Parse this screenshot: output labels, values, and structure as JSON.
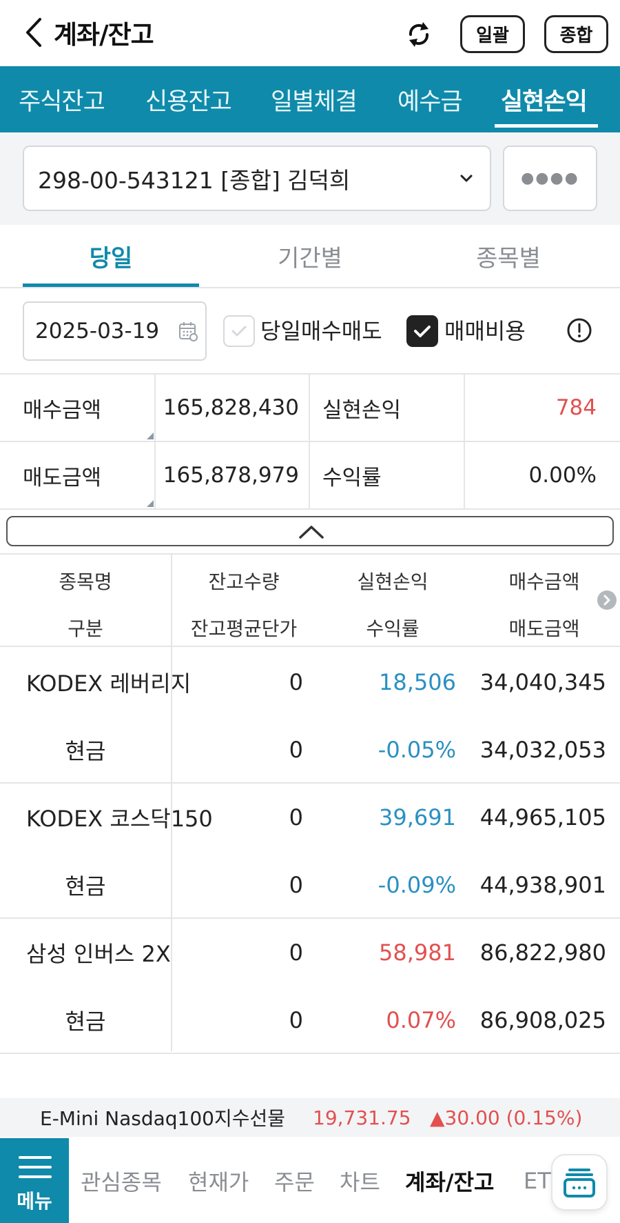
{
  "header": {
    "title": "계좌/잔고",
    "btn_bulk": "일괄",
    "btn_total": "종합"
  },
  "tabs": [
    {
      "label": "주식잔고",
      "active": false
    },
    {
      "label": "신용잔고",
      "active": false
    },
    {
      "label": "일별체결",
      "active": false
    },
    {
      "label": "예수금",
      "active": false
    },
    {
      "label": "실현손익",
      "active": true
    }
  ],
  "account": {
    "value": "298-00-543121 [종합] 김덕희",
    "password_mask": "●●●●"
  },
  "subtabs": [
    {
      "label": "당일",
      "active": true
    },
    {
      "label": "기간별",
      "active": false
    },
    {
      "label": "종목별",
      "active": false
    }
  ],
  "filters": {
    "date": "2025-03-19",
    "same_day_trade_label": "당일매수매도",
    "same_day_trade_checked": false,
    "fees_label": "매매비용",
    "fees_checked": true
  },
  "summary": {
    "buy_label": "매수금액",
    "buy_value": "165,828,430",
    "sell_label": "매도금액",
    "sell_value": "165,878,979",
    "realized_label": "실현손익",
    "realized_value": "784",
    "return_label": "수익률",
    "return_value": "0.00%"
  },
  "table": {
    "headers": {
      "name": "종목명",
      "qty": "잔고수량",
      "pl": "실현손익",
      "buy": "매수금액",
      "type": "구분",
      "avg": "잔고평균단가",
      "rate": "수익률",
      "sell": "매도금액"
    },
    "rows": [
      {
        "name": "KODEX 레버리지",
        "type": "현금",
        "qty": "0",
        "avg": "0",
        "pl": "18,506",
        "rate": "-0.05%",
        "buy": "34,040,345",
        "sell": "34,032,053",
        "pl_color": "blue"
      },
      {
        "name": "KODEX 코스닥150",
        "type": "현금",
        "qty": "0",
        "avg": "0",
        "pl": "39,691",
        "rate": "-0.09%",
        "buy": "44,965,105",
        "sell": "44,938,901",
        "pl_color": "blue"
      },
      {
        "name": "삼성 인버스 2X",
        "type": "현금",
        "qty": "0",
        "avg": "0",
        "pl": "58,981",
        "rate": "0.07%",
        "buy": "86,822,980",
        "sell": "86,908,025",
        "pl_color": "red"
      }
    ]
  },
  "ticker": {
    "name": "E-Mini Nasdaq100지수선물",
    "price": "19,731.75",
    "change": "▲30.00 (0.15%)"
  },
  "bottom_nav": {
    "menu_label": "메뉴",
    "items": [
      {
        "label": "관심종목",
        "active": false
      },
      {
        "label": "현재가",
        "active": false
      },
      {
        "label": "주문",
        "active": false
      },
      {
        "label": "차트",
        "active": false
      },
      {
        "label": "계좌/잔고",
        "active": true
      },
      {
        "label": "ETF",
        "active": false
      }
    ]
  },
  "colors": {
    "accent": "#0f8aaa",
    "positive": "#e25050",
    "negative": "#2a90c2"
  }
}
